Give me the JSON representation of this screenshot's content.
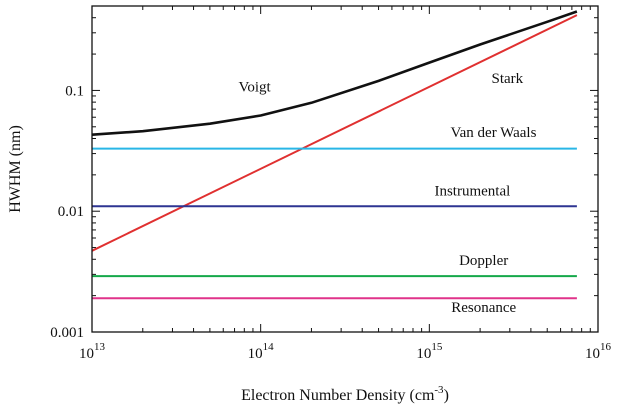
{
  "chart_data": {
    "type": "line",
    "xscale": "log",
    "yscale": "log",
    "xlim": [
      10000000000000.0,
      1e+16
    ],
    "ylim": [
      0.001,
      0.5
    ],
    "grid": false,
    "legend": "inline labels",
    "xlabel": {
      "text": "Electron Number Density (cm",
      "sup": "-3",
      "tail": ")"
    },
    "ylabel": "HWHM (nm)",
    "x_ticks": [
      {
        "value": 10000000000000.0,
        "base": "10",
        "exp": "13"
      },
      {
        "value": 100000000000000.0,
        "base": "10",
        "exp": "14"
      },
      {
        "value": 1000000000000000.0,
        "base": "10",
        "exp": "15"
      },
      {
        "value": 1e+16,
        "base": "10",
        "exp": "16"
      }
    ],
    "y_ticks": [
      {
        "value": 0.001,
        "label": "0.001"
      },
      {
        "value": 0.01,
        "label": "0.01"
      },
      {
        "value": 0.1,
        "label": "0.1"
      }
    ],
    "series": [
      {
        "name": "Voigt",
        "color": "#111111",
        "x": [
          10000000000000.0,
          20000000000000.0,
          50000000000000.0,
          100000000000000.0,
          200000000000000.0,
          500000000000000.0,
          1000000000000000.0,
          2000000000000000.0,
          5000000000000000.0,
          7500000000000000.0
        ],
        "y": [
          0.043,
          0.046,
          0.053,
          0.062,
          0.079,
          0.12,
          0.17,
          0.24,
          0.37,
          0.45
        ],
        "label_at": [
          92000000000000.0,
          0.098
        ]
      },
      {
        "name": "Stark",
        "color": "#e03030",
        "x": [
          10000000000000.0,
          7500000000000000.0
        ],
        "y": [
          0.0047,
          0.42
        ],
        "label_at": [
          2900000000000000.0,
          0.115
        ]
      },
      {
        "name": "Van der Waals",
        "color": "#29b6e6",
        "x": [
          10000000000000.0,
          7500000000000000.0
        ],
        "y": [
          0.033,
          0.033
        ],
        "label_at": [
          2400000000000000.0,
          0.041
        ]
      },
      {
        "name": "Instrumental",
        "color": "#2e3592",
        "x": [
          10000000000000.0,
          7500000000000000.0
        ],
        "y": [
          0.011,
          0.011
        ],
        "label_at": [
          1800000000000000.0,
          0.0135
        ]
      },
      {
        "name": "Doppler",
        "color": "#14a84a",
        "x": [
          10000000000000.0,
          7500000000000000.0
        ],
        "y": [
          0.0029,
          0.0029
        ],
        "label_at": [
          2100000000000000.0,
          0.0036
        ]
      },
      {
        "name": "Resonance",
        "color": "#e0338a",
        "x": [
          10000000000000.0,
          7500000000000000.0
        ],
        "y": [
          0.0019,
          0.0019
        ],
        "label_at": [
          2100000000000000.0,
          0.00147
        ]
      }
    ]
  }
}
